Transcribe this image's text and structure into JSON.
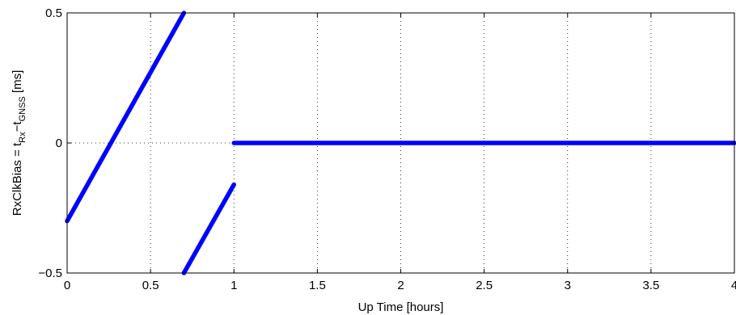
{
  "chart_data": {
    "type": "line",
    "title": "",
    "xlabel": "Up Time [hours]",
    "ylabel": {
      "main": "RxClkBias = t",
      "sub1": "Rx",
      "mid": "−t",
      "sub2": "GNSS",
      "unit": " [ms]"
    },
    "xlim": [
      0,
      4
    ],
    "ylim": [
      -0.5,
      0.5
    ],
    "xticks": [
      0,
      0.5,
      1,
      1.5,
      2,
      2.5,
      3,
      3.5,
      4
    ],
    "xtick_labels": [
      "0",
      "0.5",
      "1",
      "1.5",
      "2",
      "2.5",
      "3",
      "3.5",
      "4"
    ],
    "yticks": [
      -0.5,
      0,
      0.5
    ],
    "ytick_labels": [
      "−0.5",
      "0",
      "0.5"
    ],
    "grid": true,
    "series_color": "#0000ff",
    "series": [
      {
        "x": [
          0,
          0.7
        ],
        "y": [
          -0.3,
          0.5
        ]
      },
      {
        "x": [
          0.7,
          1.0
        ],
        "y": [
          -0.5,
          -0.16
        ]
      },
      {
        "x": [
          1.0,
          4.0
        ],
        "y": [
          0,
          0
        ]
      }
    ]
  }
}
